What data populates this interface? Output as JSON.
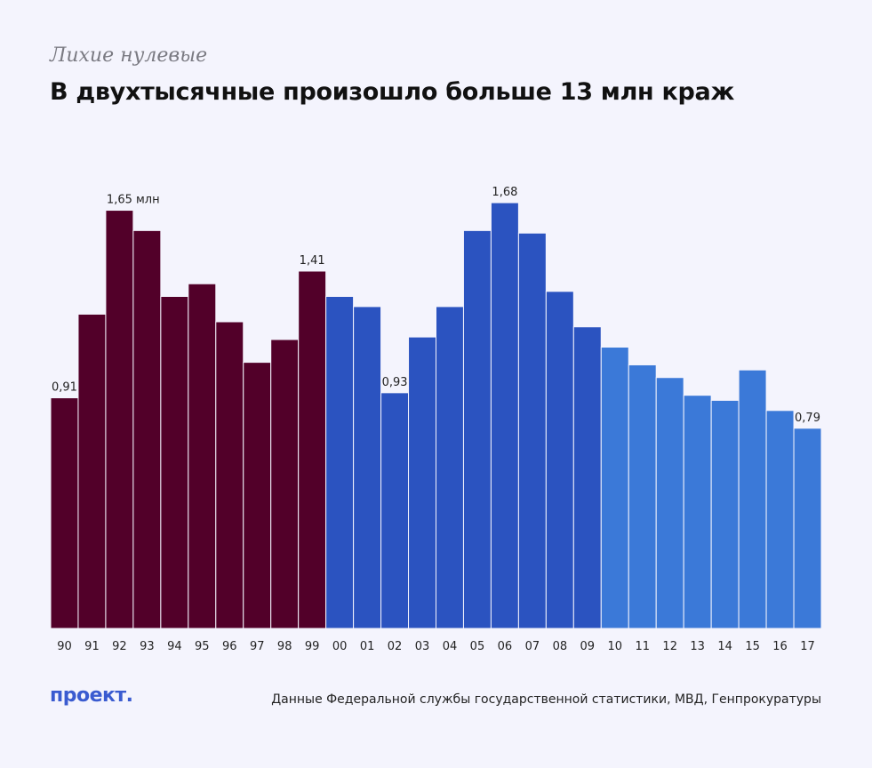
{
  "header": {
    "kicker": "Лихие нулевые",
    "title": "В двухтысячные произошло больше 13 млн краж"
  },
  "footer": {
    "logo": "проект.",
    "source": "Данные Федеральной службы государственной статистики, МВД, Генпрокуратуры"
  },
  "colors": {
    "nineties": "#520029",
    "two_thousands": "#2b53c0",
    "twenty_tens": "#3b79d8",
    "background": "#f4f4fd"
  },
  "chart_data": {
    "type": "bar",
    "title": "В двухтысячные произошло больше 13 млн краж",
    "xlabel": "",
    "ylabel": "",
    "ylim": [
      0,
      1.68
    ],
    "grid": false,
    "categories": [
      "90",
      "91",
      "92",
      "93",
      "94",
      "95",
      "96",
      "97",
      "98",
      "99",
      "00",
      "01",
      "02",
      "03",
      "04",
      "05",
      "06",
      "07",
      "08",
      "09",
      "10",
      "11",
      "12",
      "13",
      "14",
      "15",
      "16",
      "17"
    ],
    "values": [
      0.91,
      1.24,
      1.65,
      1.57,
      1.31,
      1.36,
      1.21,
      1.05,
      1.14,
      1.41,
      1.31,
      1.27,
      0.93,
      1.15,
      1.27,
      1.57,
      1.68,
      1.56,
      1.33,
      1.19,
      1.11,
      1.04,
      0.99,
      0.92,
      0.9,
      1.02,
      0.86,
      0.79
    ],
    "value_labels": [
      {
        "index": 0,
        "text": "0,91"
      },
      {
        "index": 2,
        "text": "1,65 млн"
      },
      {
        "index": 9,
        "text": "1,41"
      },
      {
        "index": 12,
        "text": "0,93"
      },
      {
        "index": 16,
        "text": "1,68"
      },
      {
        "index": 27,
        "text": "0,79"
      }
    ],
    "groups": [
      {
        "from": 0,
        "to": 9,
        "color_key": "nineties"
      },
      {
        "from": 10,
        "to": 19,
        "color_key": "two_thousands"
      },
      {
        "from": 20,
        "to": 27,
        "color_key": "twenty_tens"
      }
    ]
  }
}
